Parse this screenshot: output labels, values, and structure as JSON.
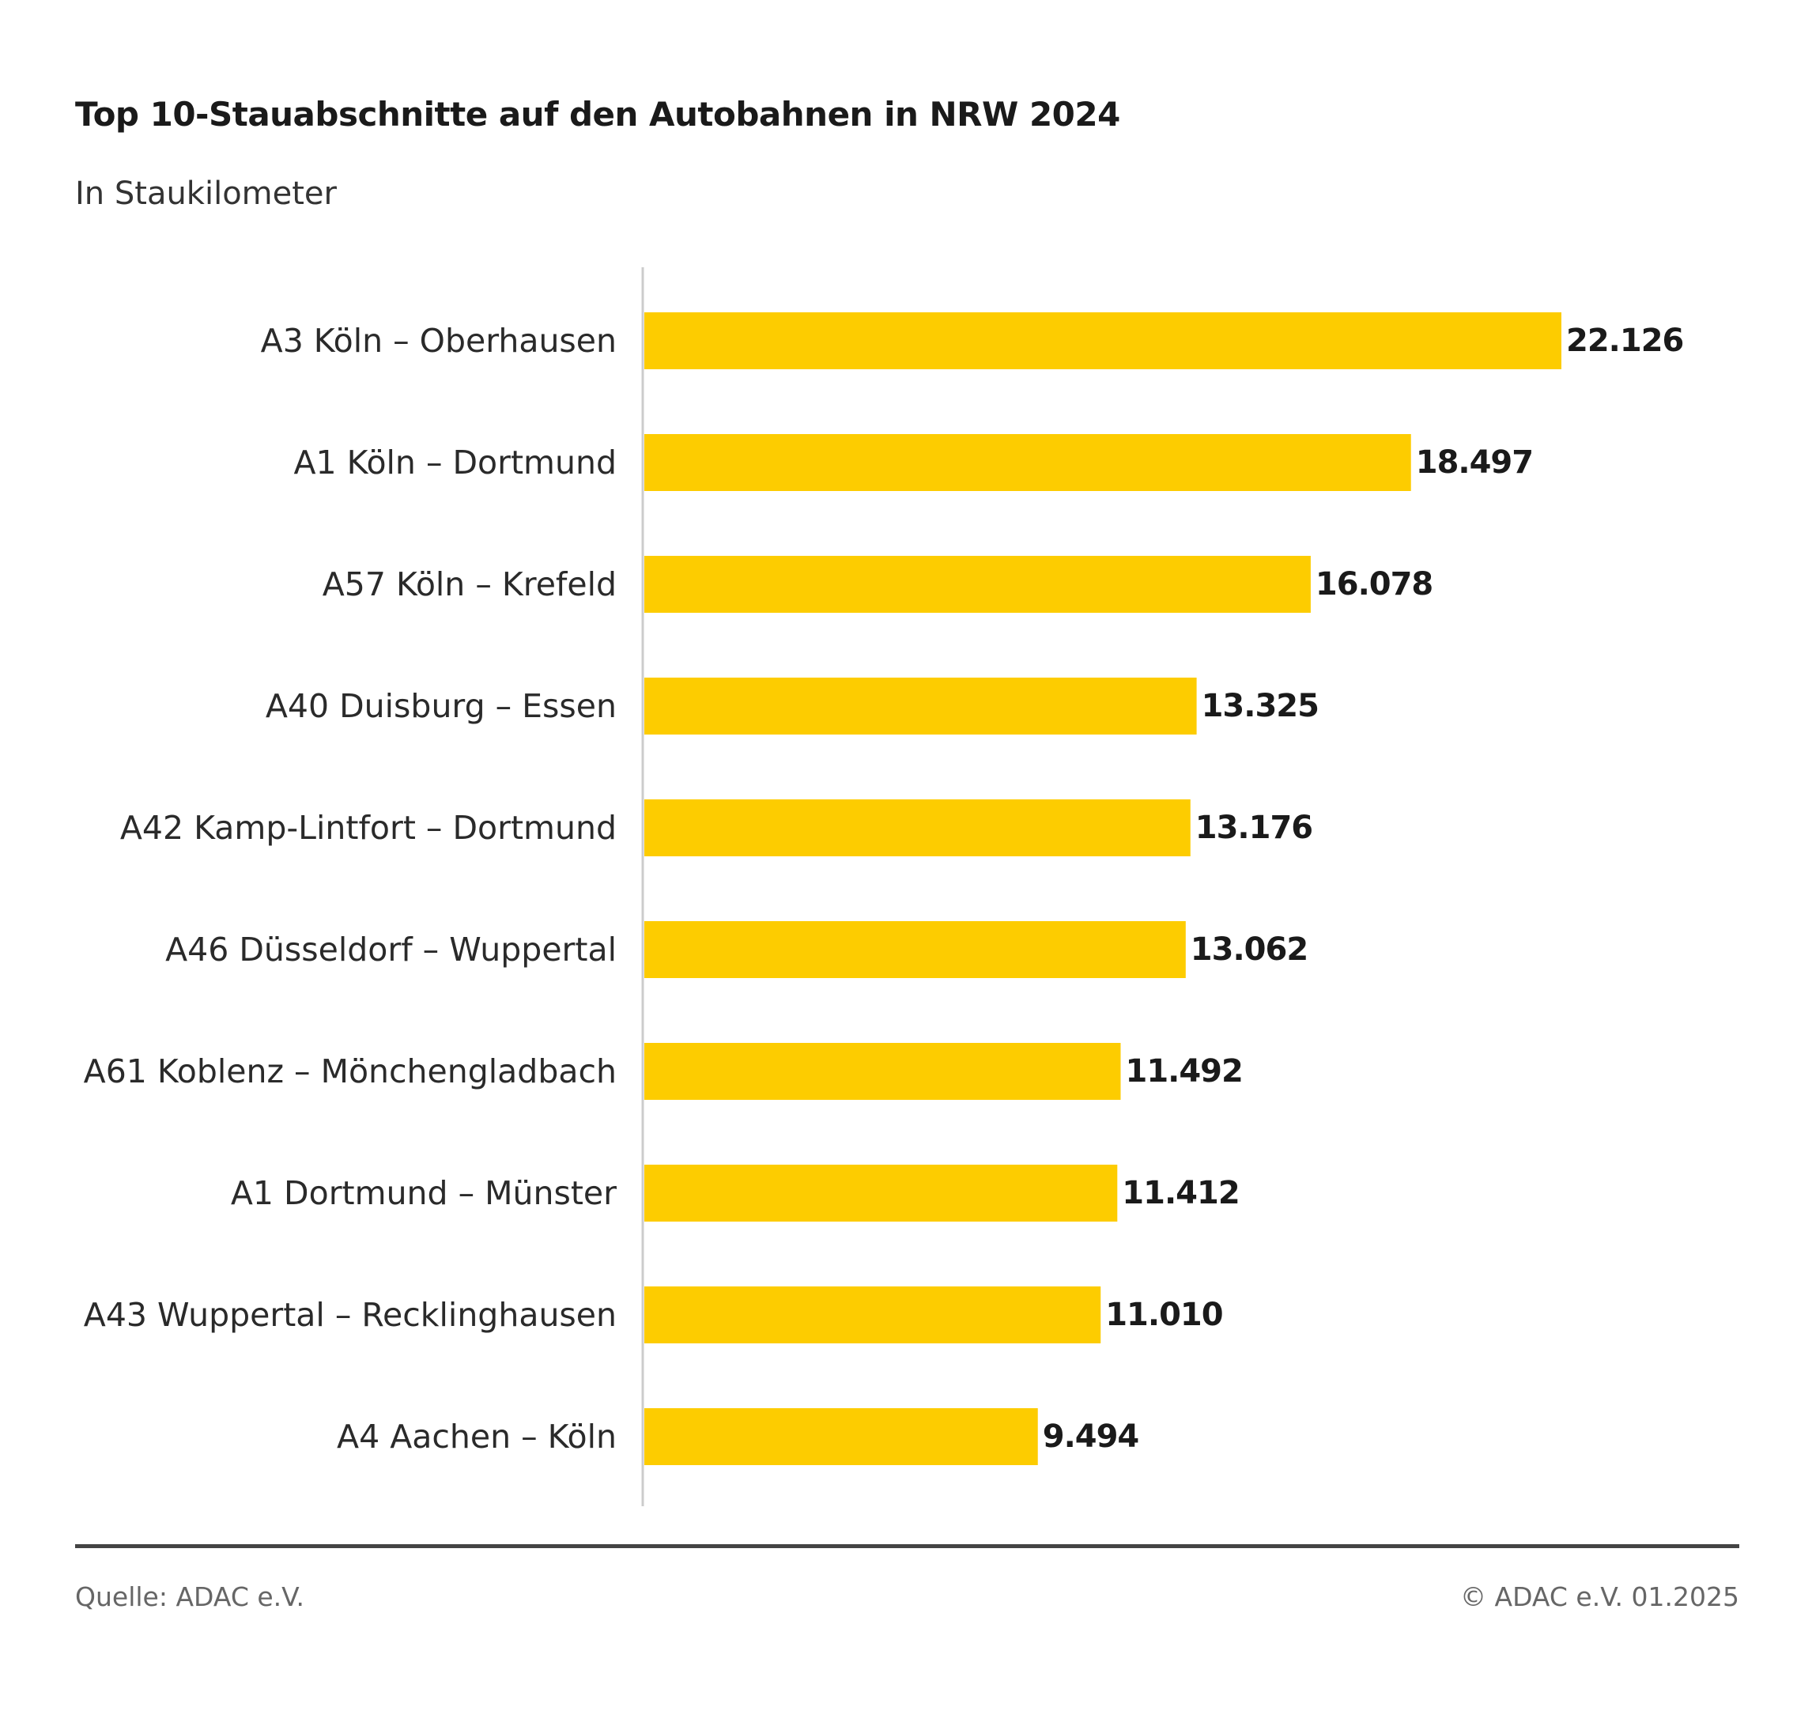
{
  "header": {
    "title": "Top 10-Stauabschnitte auf den Autobahnen in NRW 2024",
    "subtitle": "In Staukilometer"
  },
  "footer": {
    "source": "Quelle: ADAC e.V.",
    "copyright": "© ADAC e.V. 01.2025"
  },
  "colors": {
    "bar": "#FDCC00",
    "axis": "#cccccc",
    "rule": "#444444"
  },
  "chart_data": {
    "type": "bar",
    "orientation": "horizontal",
    "title": "Top 10-Stauabschnitte auf den Autobahnen in NRW 2024",
    "subtitle": "In Staukilometer",
    "xlabel": "",
    "ylabel": "",
    "xlim": [
      0,
      22126
    ],
    "grid": false,
    "categories": [
      "A3 Köln – Oberhausen",
      "A1 Köln – Dortmund",
      "A57 Köln – Krefeld",
      "A40 Duisburg – Essen",
      "A42 Kamp-Lintfort – Dortmund",
      "A46 Düsseldorf – Wuppertal",
      "A61 Koblenz – Mönchengladbach",
      "A1 Dortmund – Münster",
      "A43 Wuppertal – Recklinghausen",
      "A4 Aachen – Köln"
    ],
    "values": [
      22126,
      18497,
      16078,
      13325,
      13176,
      13062,
      11492,
      11412,
      11010,
      9494
    ],
    "value_labels": [
      "22.126",
      "18.497",
      "16.078",
      "13.325",
      "13.176",
      "13.062",
      "11.492",
      "11.412",
      "11.010",
      "9.494"
    ]
  }
}
